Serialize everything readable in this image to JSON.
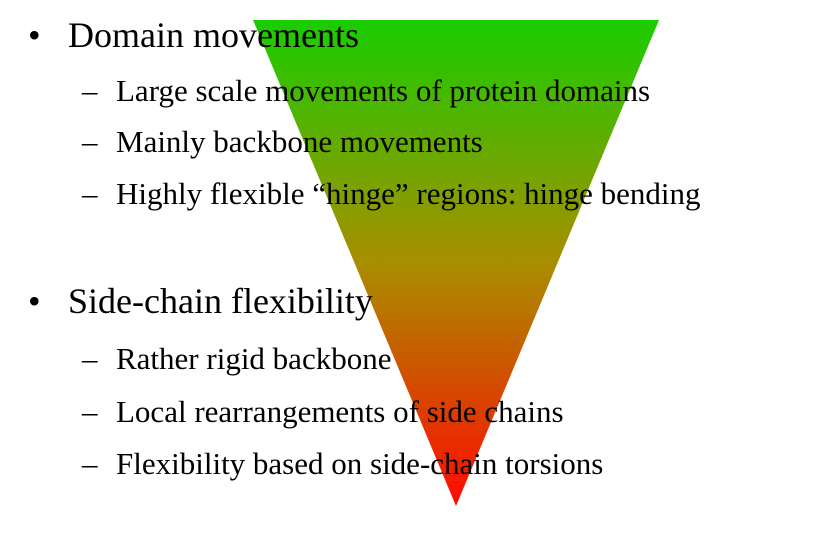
{
  "colors": {
    "gradient_top": "#19cc00",
    "gradient_mid": "#a88e00",
    "gradient_bottom": "#ff0a00"
  },
  "sections": [
    {
      "bullet": "•",
      "heading": "Domain movements",
      "items": [
        {
          "dash": "–",
          "text": "Large scale movements of protein domains"
        },
        {
          "dash": "–",
          "text": "Mainly backbone movements"
        },
        {
          "dash": "–",
          "text": "Highly flexible “hinge” regions: hinge bending"
        }
      ]
    },
    {
      "bullet": "•",
      "heading": "Side-chain flexibility",
      "items": [
        {
          "dash": "–",
          "text": "Rather rigid backbone"
        },
        {
          "dash": "–",
          "text": "Local rearrangements of side chains"
        },
        {
          "dash": "–",
          "text": "Flexibility based on side-chain torsions"
        }
      ]
    }
  ]
}
